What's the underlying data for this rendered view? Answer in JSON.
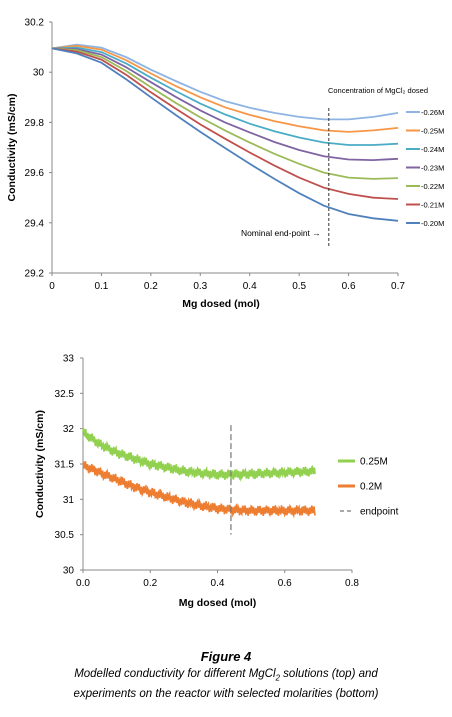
{
  "chart_data": [
    {
      "type": "line",
      "xlabel": "Mg dosed (mol)",
      "ylabel": "Conductivity (mS/cm)",
      "xlim": [
        0,
        0.7
      ],
      "ylim": [
        29.2,
        30.2
      ],
      "xticks": [
        "0",
        "0.1",
        "0.2",
        "0.3",
        "0.4",
        "0.5",
        "0.6",
        "0.7"
      ],
      "yticks": [
        "29.2",
        "29.4",
        "29.6",
        "29.8",
        "30",
        "30.2"
      ],
      "grid": false,
      "legend_position": "right",
      "legend_title": "Concentration of MgCl₂ dosed",
      "endpoint_x": 0.56,
      "endpoint_label": "Nominal end-point",
      "x": [
        0,
        0.05,
        0.1,
        0.15,
        0.2,
        0.25,
        0.3,
        0.35,
        0.4,
        0.45,
        0.5,
        0.55,
        0.6,
        0.65,
        0.7
      ],
      "series": [
        {
          "name": "0.26M",
          "color": "#8EB4E3",
          "values": [
            30.095,
            30.11,
            30.098,
            30.06,
            30.01,
            29.965,
            29.922,
            29.885,
            29.858,
            29.838,
            29.822,
            29.812,
            29.812,
            29.822,
            29.838
          ]
        },
        {
          "name": "0.25M",
          "color": "#F79646",
          "values": [
            30.095,
            30.105,
            30.09,
            30.048,
            29.995,
            29.945,
            29.9,
            29.86,
            29.83,
            29.805,
            29.785,
            29.768,
            29.762,
            29.768,
            29.778
          ]
        },
        {
          "name": "0.24M",
          "color": "#4BACC6",
          "values": [
            30.095,
            30.098,
            30.08,
            30.035,
            29.978,
            29.925,
            29.875,
            29.832,
            29.795,
            29.765,
            29.74,
            29.72,
            29.71,
            29.71,
            29.715
          ]
        },
        {
          "name": "0.23M",
          "color": "#8064A2",
          "values": [
            30.095,
            30.092,
            30.07,
            30.02,
            29.96,
            29.902,
            29.848,
            29.8,
            29.76,
            29.722,
            29.69,
            29.665,
            29.652,
            29.65,
            29.655
          ]
        },
        {
          "name": "0.22M",
          "color": "#9BBB59",
          "values": [
            30.095,
            30.088,
            30.06,
            30.005,
            29.94,
            29.878,
            29.82,
            29.768,
            29.72,
            29.675,
            29.635,
            29.6,
            29.58,
            29.575,
            29.578
          ]
        },
        {
          "name": "0.21M",
          "color": "#C0504D",
          "values": [
            30.095,
            30.082,
            30.05,
            29.99,
            29.92,
            29.855,
            29.792,
            29.735,
            29.68,
            29.628,
            29.58,
            29.54,
            29.515,
            29.5,
            29.495
          ]
        },
        {
          "name": "0.20M",
          "color": "#4F81BD",
          "values": [
            30.095,
            30.075,
            30.038,
            29.972,
            29.9,
            29.83,
            29.762,
            29.698,
            29.635,
            29.575,
            29.518,
            29.468,
            29.435,
            29.418,
            29.408
          ]
        }
      ]
    },
    {
      "type": "line",
      "xlabel": "Mg dosed (mol)",
      "ylabel": "Conductivity (mS/cm)",
      "xlim": [
        0,
        0.8
      ],
      "ylim": [
        30,
        33
      ],
      "xticks": [
        "0.0",
        "0.2",
        "0.4",
        "0.6",
        "0.8"
      ],
      "yticks": [
        "30",
        "30.5",
        "31",
        "31.5",
        "32",
        "32.5",
        "33"
      ],
      "grid": false,
      "legend_position": "right",
      "endpoint_x": 0.44,
      "endpoint_y_range": [
        30.5,
        32.05
      ],
      "x": [
        0,
        0.05,
        0.1,
        0.15,
        0.2,
        0.25,
        0.3,
        0.35,
        0.4,
        0.45,
        0.5,
        0.55,
        0.6,
        0.65,
        0.69
      ],
      "series": [
        {
          "name": "0.25M",
          "color": "#92D050",
          "values": [
            31.95,
            31.78,
            31.66,
            31.58,
            31.5,
            31.45,
            31.4,
            31.37,
            31.35,
            31.35,
            31.36,
            31.37,
            31.38,
            31.39,
            31.4
          ]
        },
        {
          "name": "0.2M",
          "color": "#ED7D31",
          "values": [
            31.48,
            31.38,
            31.28,
            31.18,
            31.1,
            31.03,
            30.96,
            30.91,
            30.87,
            30.85,
            30.84,
            30.84,
            30.84,
            30.84,
            30.84
          ]
        }
      ],
      "endpoint_label": "endpoint"
    }
  ],
  "caption": {
    "figure_label": "Figure 4",
    "line1_pre": "Modelled conductivity for different MgCl",
    "line1_sub": "2",
    "line1_post": " solutions (top) and",
    "line2": "experiments on the reactor with selected molarities (bottom)"
  }
}
